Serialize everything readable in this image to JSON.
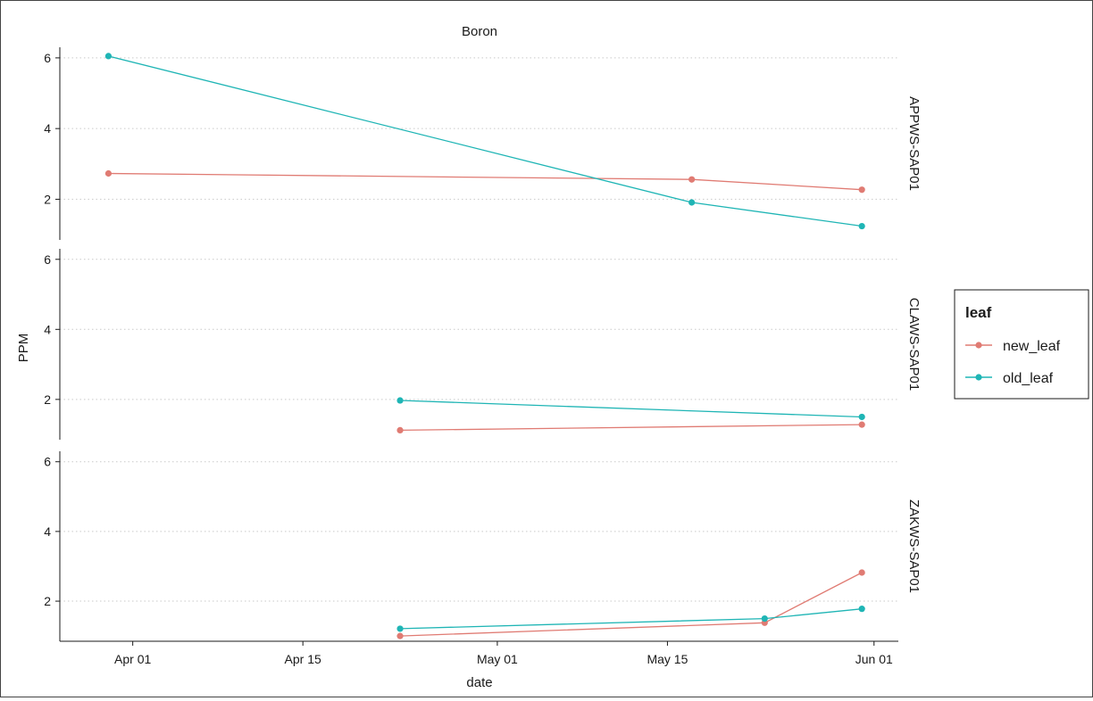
{
  "chart_data": {
    "type": "line",
    "title": "Boron",
    "xlabel": "date",
    "ylabel": "PPM",
    "x_axis": {
      "type": "date",
      "range": [
        "2021-03-26",
        "2021-06-03"
      ],
      "ticks": [
        {
          "value": "2021-04-01",
          "label": "Apr 01"
        },
        {
          "value": "2021-04-15",
          "label": "Apr 15"
        },
        {
          "value": "2021-05-01",
          "label": "May 01"
        },
        {
          "value": "2021-05-15",
          "label": "May 15"
        },
        {
          "value": "2021-06-01",
          "label": "Jun 01"
        }
      ]
    },
    "y_axis": {
      "range": [
        0.85,
        6.3
      ],
      "ticks": [
        2,
        4,
        6
      ]
    },
    "grid": {
      "horizontal_major": true,
      "vertical": false
    },
    "legend": {
      "title": "leaf",
      "position": "right",
      "items": [
        {
          "label": "new_leaf",
          "color": "#e07b73"
        },
        {
          "label": "old_leaf",
          "color": "#1fb5b5"
        }
      ]
    },
    "facets": [
      {
        "label": "APPWS-SAP01",
        "series": [
          {
            "name": "new_leaf",
            "color": "#e07b73",
            "points": [
              {
                "x": "2021-03-30",
                "y": 2.73
              },
              {
                "x": "2021-05-17",
                "y": 2.56
              },
              {
                "x": "2021-05-31",
                "y": 2.27
              }
            ]
          },
          {
            "name": "old_leaf",
            "color": "#1fb5b5",
            "points": [
              {
                "x": "2021-03-30",
                "y": 6.05
              },
              {
                "x": "2021-05-17",
                "y": 1.91
              },
              {
                "x": "2021-05-31",
                "y": 1.24
              }
            ]
          }
        ]
      },
      {
        "label": "CLAWS-SAP01",
        "series": [
          {
            "name": "new_leaf",
            "color": "#e07b73",
            "points": [
              {
                "x": "2021-04-23",
                "y": 1.12
              },
              {
                "x": "2021-05-31",
                "y": 1.28
              }
            ]
          },
          {
            "name": "old_leaf",
            "color": "#1fb5b5",
            "points": [
              {
                "x": "2021-04-23",
                "y": 1.97
              },
              {
                "x": "2021-05-31",
                "y": 1.5
              }
            ]
          }
        ]
      },
      {
        "label": "ZAKWS-SAP01",
        "series": [
          {
            "name": "new_leaf",
            "color": "#e07b73",
            "points": [
              {
                "x": "2021-04-23",
                "y": 1.0
              },
              {
                "x": "2021-05-23",
                "y": 1.38
              },
              {
                "x": "2021-05-31",
                "y": 2.82
              }
            ]
          },
          {
            "name": "old_leaf",
            "color": "#1fb5b5",
            "points": [
              {
                "x": "2021-04-23",
                "y": 1.21
              },
              {
                "x": "2021-05-23",
                "y": 1.5
              },
              {
                "x": "2021-05-31",
                "y": 1.78
              }
            ]
          }
        ]
      }
    ]
  }
}
